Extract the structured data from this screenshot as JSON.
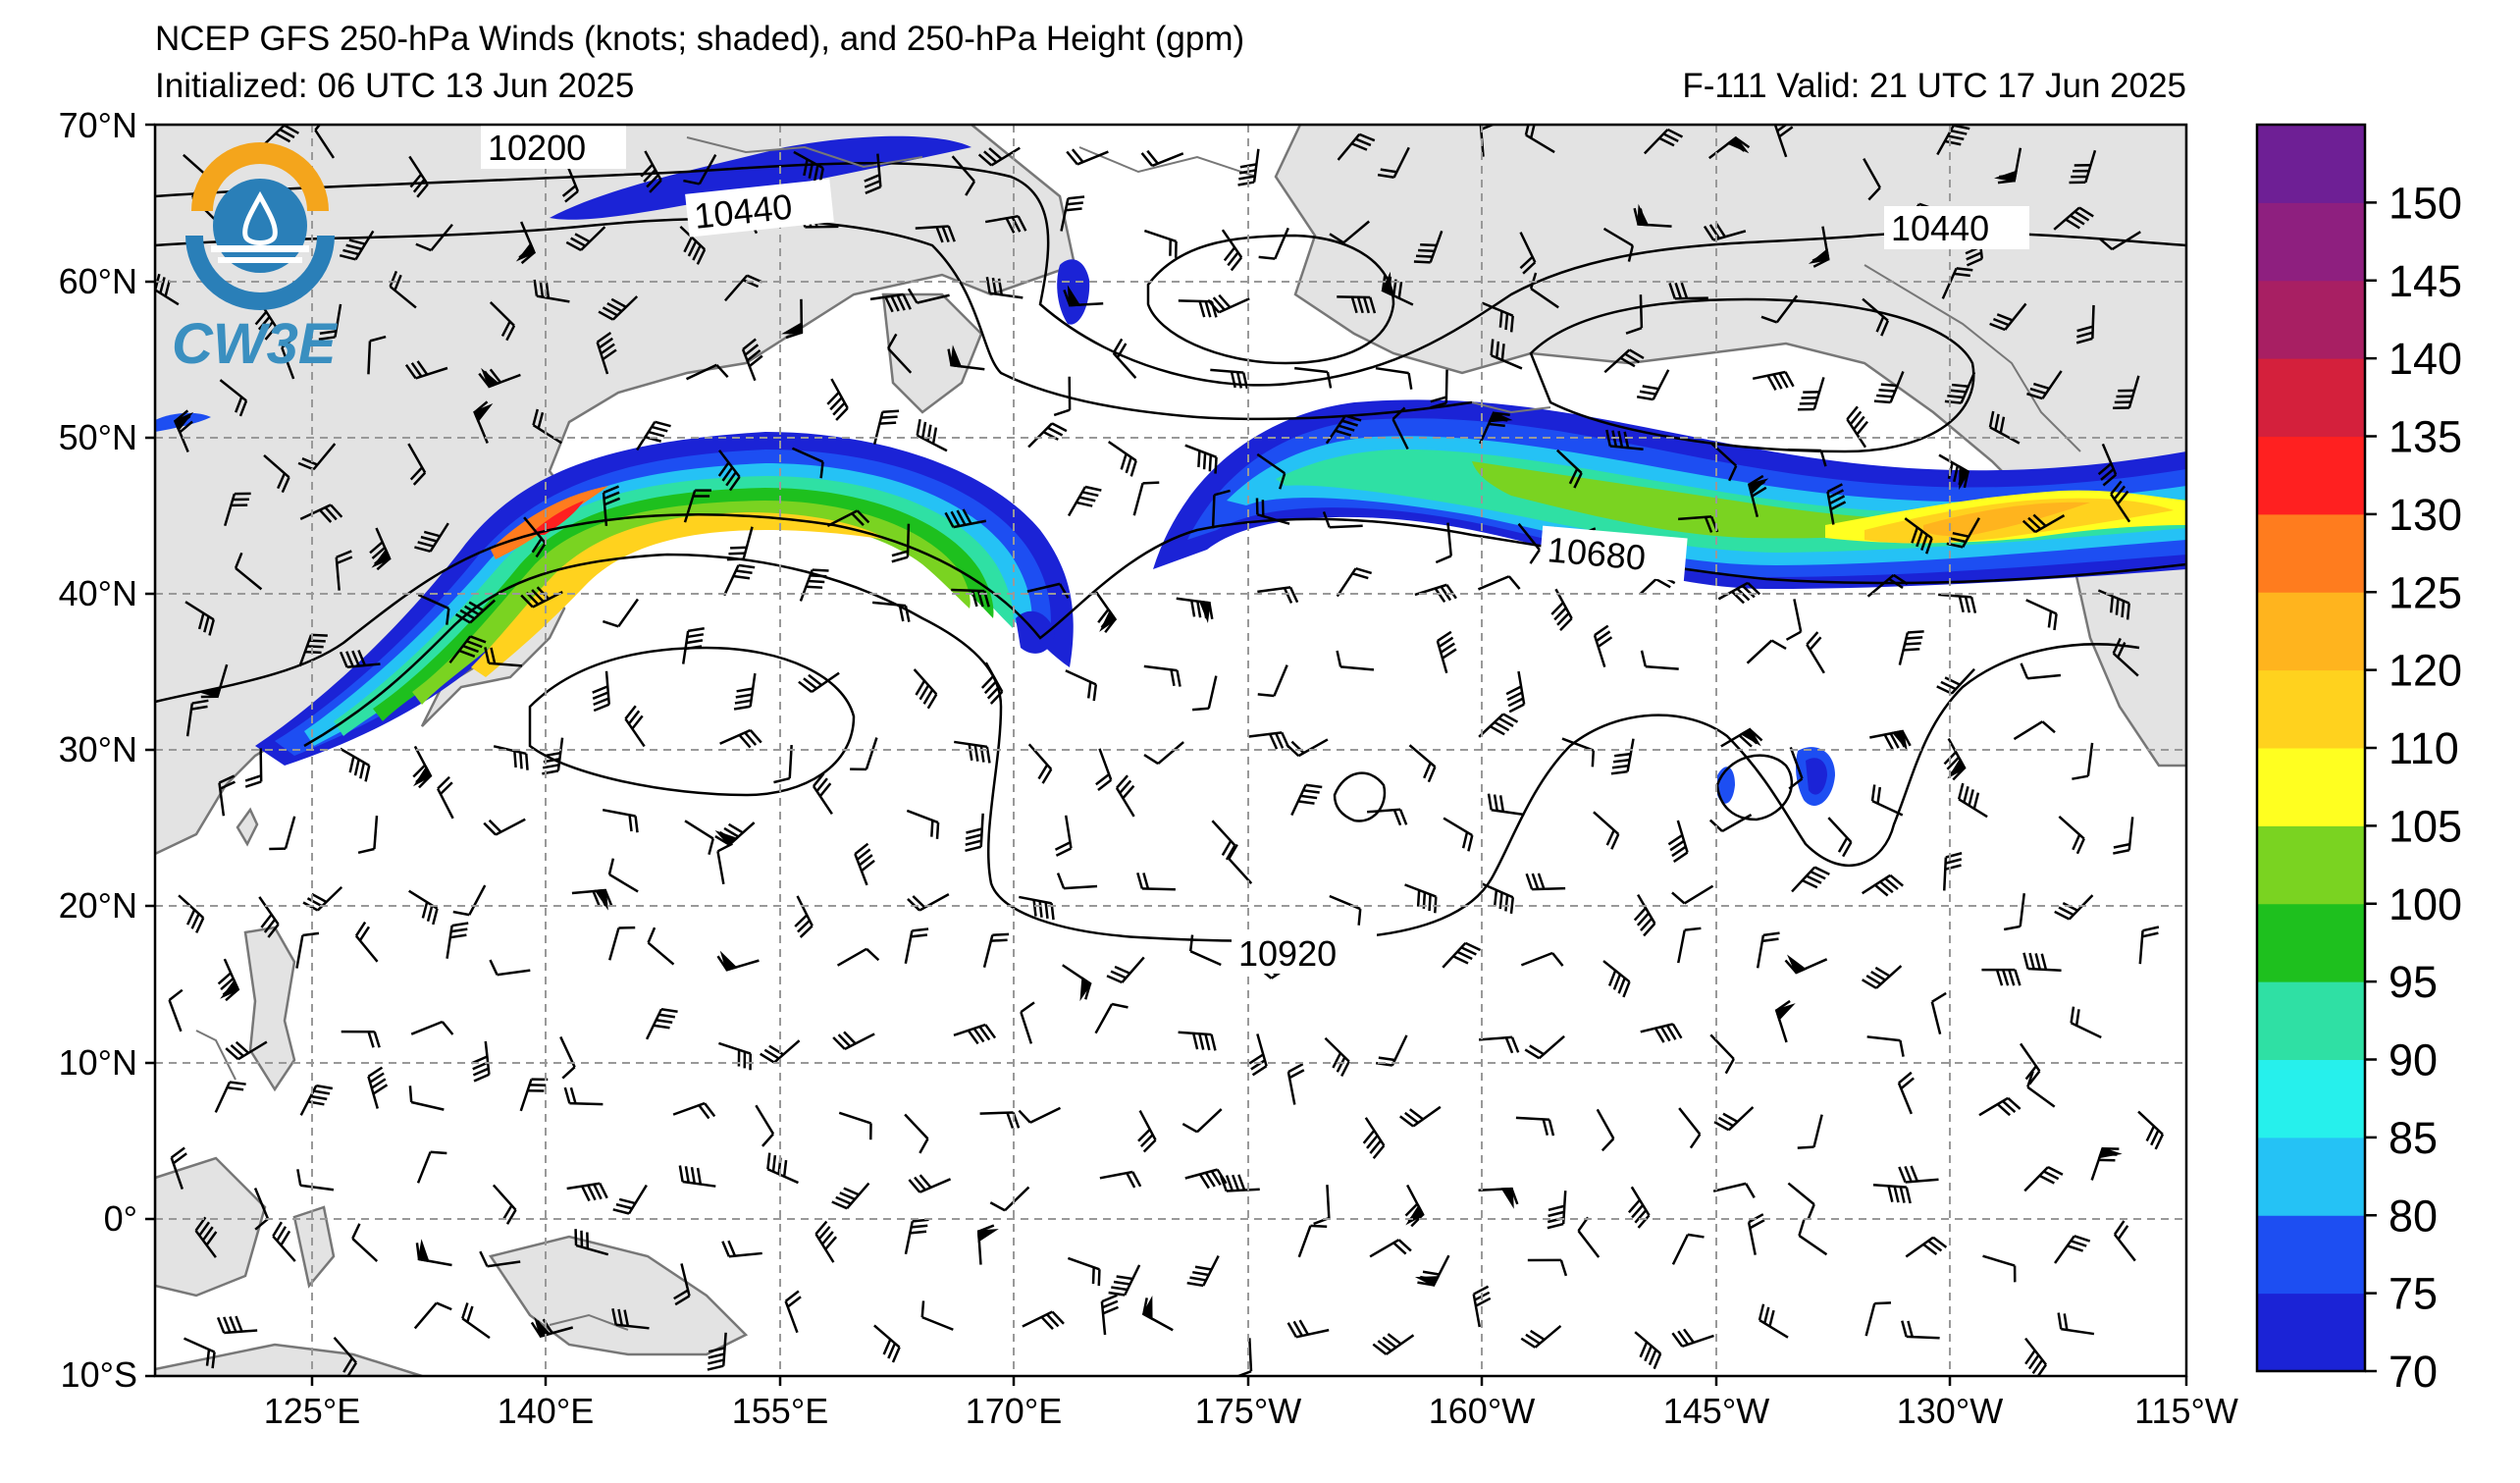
{
  "map": {
    "title_line1": "NCEP GFS 250-hPa Winds (knots; shaded), and 250-hPa Height (gpm)",
    "initialized": "Initialized: 06 UTC 13 Jun 2025",
    "valid": "F-111  Valid: 21 UTC 17 Jun 2025",
    "logo_text": "CW3E",
    "lat_labels": [
      "70°N",
      "60°N",
      "50°N",
      "40°N",
      "30°N",
      "20°N",
      "10°N",
      "0°",
      "10°S"
    ],
    "lon_labels": [
      "125°E",
      "140°E",
      "155°E",
      "170°E",
      "175°W",
      "160°W",
      "145°W",
      "130°W",
      "115°W"
    ],
    "contour_labels": [
      "10200",
      "10440",
      "10440",
      "10680",
      "10920"
    ],
    "colors": {
      "land": "#e3e3e3",
      "coastline": "#777777",
      "grid": "#999999"
    }
  },
  "colorbar": {
    "ticks": [
      "150",
      "145",
      "140",
      "135",
      "130",
      "125",
      "120",
      "110",
      "105",
      "100",
      "95",
      "90",
      "85",
      "80",
      "75",
      "70"
    ],
    "bins": [
      {
        "low": 70,
        "high": 75,
        "color": "#1b23d6"
      },
      {
        "low": 75,
        "high": 80,
        "color": "#1d4ef2"
      },
      {
        "low": 80,
        "high": 85,
        "color": "#25c2f5"
      },
      {
        "low": 85,
        "high": 90,
        "color": "#26f0ec"
      },
      {
        "low": 90,
        "high": 95,
        "color": "#2fe0a4"
      },
      {
        "low": 95,
        "high": 100,
        "color": "#1ec01e"
      },
      {
        "low": 100,
        "high": 105,
        "color": "#7ad321"
      },
      {
        "low": 105,
        "high": 110,
        "color": "#ffff20"
      },
      {
        "low": 110,
        "high": 120,
        "color": "#ffd21e"
      },
      {
        "low": 120,
        "high": 125,
        "color": "#ffb41e"
      },
      {
        "low": 125,
        "high": 130,
        "color": "#ff7c1e"
      },
      {
        "low": 130,
        "high": 135,
        "color": "#ff2020"
      },
      {
        "low": 135,
        "high": 140,
        "color": "#d4203c"
      },
      {
        "low": 140,
        "high": 145,
        "color": "#a81f63"
      },
      {
        "low": 145,
        "high": 150,
        "color": "#8e1f7f"
      },
      {
        "low": 150,
        "high": 155,
        "color": "#6e1f95"
      }
    ]
  }
}
